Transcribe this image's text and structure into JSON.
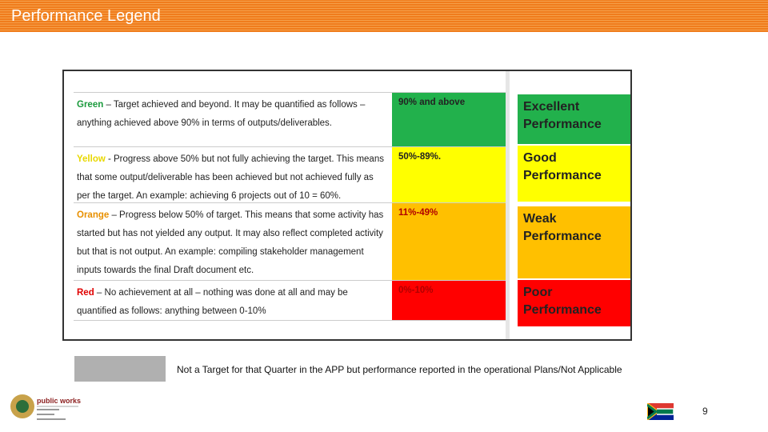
{
  "header": {
    "title": "Performance Legend"
  },
  "legend": {
    "rows": [
      {
        "color_name": "Green",
        "description": " – Target achieved and beyond. It may be quantified as follows – anything achieved above 90% in terms of outputs/deliverables.",
        "range": "90% and above",
        "performance": "Excellent Performance"
      },
      {
        "color_name": "Yellow",
        "description": " - Progress above 50% but not fully achieving the target. This means that some output/deliverable has been achieved but not achieved fully as per the target. An example: achieving 6 projects out of 10 = 60%.",
        "range": "50%-89%.",
        "performance": "Good Performance"
      },
      {
        "color_name": "Orange",
        "description": " – Progress below 50% of target. This means that some activity has started but has not yielded any output. It may also reflect completed activity but that is not output. An example: compiling stakeholder management inputs towards the final Draft document etc.",
        "range": "11%-49%",
        "performance": "Weak Performance"
      },
      {
        "color_name": "Red",
        "description": " – No achievement at all – nothing was done at all and may be quantified as follows: anything between 0-10%",
        "range": "0%-10%",
        "performance": "Poor Performance"
      }
    ]
  },
  "note": "Not a Target for that Quarter in the APP but performance reported in the operational Plans/Not Applicable",
  "footer": {
    "logo_text": "public works",
    "page_number": "9"
  }
}
